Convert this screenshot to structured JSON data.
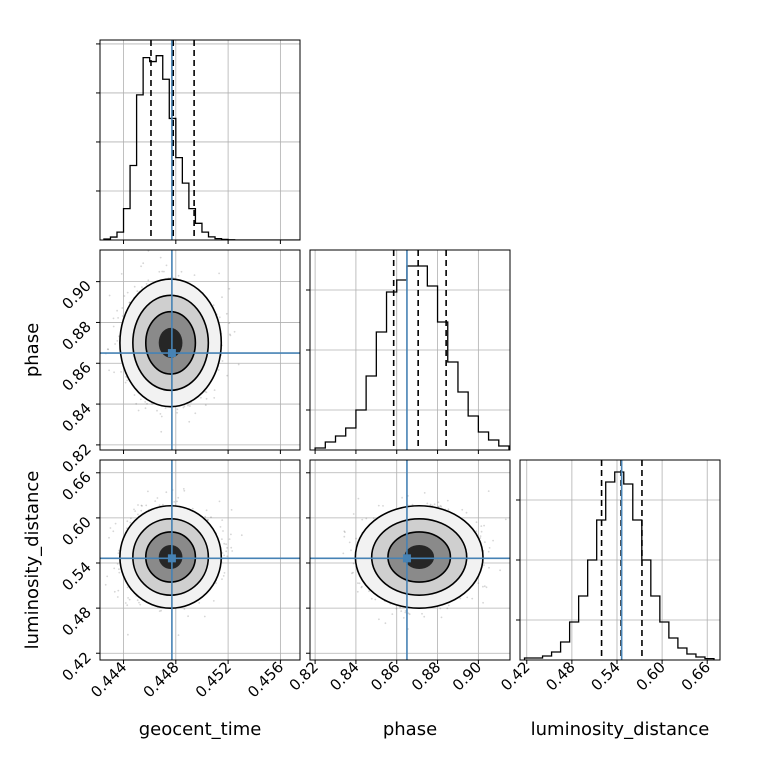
{
  "chart_data": [
    {
      "type": "histogram",
      "panel": "geocent_time",
      "bins": [
        0.4425,
        0.443,
        0.4435,
        0.444,
        0.4445,
        0.445,
        0.4455,
        0.446,
        0.4465,
        0.447,
        0.4475,
        0.448,
        0.4485,
        0.449,
        0.4495,
        0.45,
        0.4505,
        0.451,
        0.4515,
        0.452,
        0.4525,
        0.453,
        0.4535,
        0.454,
        0.4545,
        0.455,
        0.4555,
        0.456,
        0.4565,
        0.457,
        0.4575
      ],
      "counts": [
        0.5,
        1.5,
        4.0,
        16.0,
        38.0,
        74.0,
        93.0,
        91.0,
        94.0,
        82.0,
        62.0,
        42.0,
        29.0,
        16.0,
        8.5,
        4.0,
        1.6,
        0.7,
        0.3,
        0.1,
        0,
        0,
        0,
        0,
        0,
        0,
        0,
        0,
        0,
        0
      ],
      "quantiles": [
        0.4461,
        0.4478,
        0.4494
      ],
      "truth": 0.4477,
      "xlim": [
        0.4422,
        0.4575
      ],
      "ylim": [
        0,
        102
      ]
    },
    {
      "type": "histogram",
      "panel": "phase",
      "bins": [
        0.82,
        0.825,
        0.83,
        0.835,
        0.84,
        0.845,
        0.85,
        0.855,
        0.86,
        0.865,
        0.87,
        0.875,
        0.88,
        0.885,
        0.89,
        0.895,
        0.9,
        0.905,
        0.91,
        0.915
      ],
      "counts": [
        1,
        4,
        7,
        11,
        20,
        37,
        59,
        79,
        85,
        92,
        92,
        82,
        64,
        44,
        29,
        17,
        9,
        5,
        2
      ],
      "quantiles": [
        0.8585,
        0.8705,
        0.8842
      ],
      "truth": 0.865,
      "xlim": [
        0.8175,
        0.9155
      ],
      "ylim": [
        0,
        100
      ]
    },
    {
      "type": "histogram",
      "panel": "luminosity_distance",
      "bins": [
        0.417,
        0.429,
        0.441,
        0.453,
        0.465,
        0.477,
        0.489,
        0.501,
        0.513,
        0.525,
        0.537,
        0.549,
        0.561,
        0.573,
        0.585,
        0.597,
        0.609,
        0.621,
        0.633,
        0.645,
        0.657,
        0.669
      ],
      "counts": [
        1,
        1,
        2,
        4,
        9,
        19,
        32,
        50,
        70,
        89,
        94,
        88,
        70,
        50,
        32,
        19,
        11,
        6,
        3,
        1.5,
        0.7
      ],
      "quantiles": [
        0.5195,
        0.5454,
        0.5732
      ],
      "truth": 0.5462,
      "xlim": [
        0.411,
        0.677
      ],
      "ylim": [
        0,
        100
      ]
    },
    {
      "type": "scatter-density",
      "panel": "phase-vs-geocent_time",
      "x": "geocent_time",
      "y": "phase",
      "center": [
        0.4476,
        0.87
      ],
      "spread": [
        0.00165,
        0.0133
      ],
      "truth": [
        0.4477,
        0.865
      ],
      "xlim": [
        0.4422,
        0.4575
      ],
      "ylim": [
        0.8175,
        0.9155
      ]
    },
    {
      "type": "scatter-density",
      "panel": "luminosity_distance-vs-geocent_time",
      "x": "geocent_time",
      "y": "luminosity_distance",
      "center": [
        0.4476,
        0.548
      ],
      "spread": [
        0.00165,
        0.029
      ],
      "truth": [
        0.4477,
        0.5462
      ],
      "xlim": [
        0.4422,
        0.4575
      ],
      "ylim": [
        0.411,
        0.677
      ]
    },
    {
      "type": "scatter-density",
      "panel": "luminosity_distance-vs-phase",
      "x": "phase",
      "y": "luminosity_distance",
      "center": [
        0.871,
        0.548
      ],
      "spread": [
        0.0133,
        0.029
      ],
      "truth": [
        0.865,
        0.5462
      ],
      "xlim": [
        0.8175,
        0.9155
      ],
      "ylim": [
        0.411,
        0.677
      ]
    }
  ],
  "axes": {
    "geocent_time": {
      "label": "geocent_time",
      "ticks": [
        "0.444",
        "0.448",
        "0.452",
        "0.456"
      ],
      "tick_values": [
        0.444,
        0.448,
        0.452,
        0.456
      ]
    },
    "phase": {
      "label": "phase",
      "ticks": [
        "0.82",
        "0.84",
        "0.86",
        "0.88",
        "0.90"
      ],
      "tick_values": [
        0.82,
        0.84,
        0.86,
        0.88,
        0.9
      ]
    },
    "luminosity_distance": {
      "label": "luminosity_distance",
      "ticks": [
        "0.42",
        "0.48",
        "0.54",
        "0.60",
        "0.66"
      ],
      "tick_values": [
        0.42,
        0.48,
        0.54,
        0.6,
        0.66
      ]
    }
  },
  "colors": {
    "truth": "#4682b4",
    "hist": "#000000",
    "grid": "#b0b0b0",
    "points": "#444444"
  }
}
